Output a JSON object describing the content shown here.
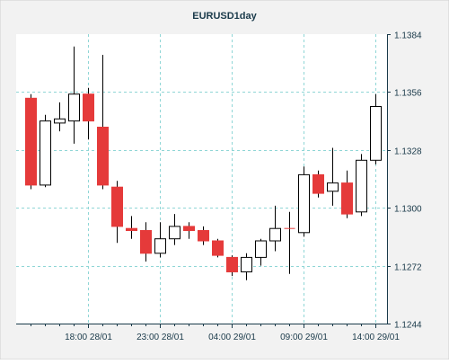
{
  "chart_data": {
    "type": "candlestick",
    "title": "EURUSD1day",
    "y_ticks": [
      "1.1384",
      "1.1356",
      "1.1328",
      "1.1300",
      "1.1272",
      "1.1244"
    ],
    "ylim": [
      1.1244,
      1.1384
    ],
    "x_ticks": [
      "18:00 28/01",
      "23:00 28/01",
      "04:00 29/01",
      "09:00 29/01",
      "14:00 29/01"
    ],
    "x_tick_bars": [
      4.5,
      9.5,
      14.5,
      19.5,
      24.5
    ],
    "grid": true,
    "colors": {
      "up_body": "#ffffff",
      "down_body": "#e53a3a",
      "up_wick": "#000000",
      "down_wick": "#000000",
      "outline": "#000000",
      "grid": "#8fd6d6",
      "axis": "#1a3a4a",
      "title": "#1a3a4a",
      "labels": "#1a3a4a",
      "plot_bg": "#ffffff",
      "panel_bg": "#f2f2f2"
    },
    "candles": [
      {
        "open": 1.1353,
        "close": 1.1311,
        "high": 1.1355,
        "low": 1.1309
      },
      {
        "open": 1.1311,
        "close": 1.1342,
        "high": 1.1345,
        "low": 1.131
      },
      {
        "open": 1.1341,
        "close": 1.1343,
        "high": 1.1351,
        "low": 1.1337
      },
      {
        "open": 1.1342,
        "close": 1.1355,
        "high": 1.1378,
        "low": 1.1331
      },
      {
        "open": 1.1355,
        "close": 1.1342,
        "high": 1.1358,
        "low": 1.1333
      },
      {
        "open": 1.1339,
        "close": 1.1311,
        "high": 1.1374,
        "low": 1.1309
      },
      {
        "open": 1.131,
        "close": 1.1291,
        "high": 1.1313,
        "low": 1.1283
      },
      {
        "open": 1.129,
        "close": 1.1289,
        "high": 1.1296,
        "low": 1.1285
      },
      {
        "open": 1.1289,
        "close": 1.1278,
        "high": 1.1293,
        "low": 1.1274
      },
      {
        "open": 1.1278,
        "close": 1.1285,
        "high": 1.1293,
        "low": 1.1276
      },
      {
        "open": 1.1285,
        "close": 1.1291,
        "high": 1.1297,
        "low": 1.1282
      },
      {
        "open": 1.1291,
        "close": 1.1289,
        "high": 1.1293,
        "low": 1.1285
      },
      {
        "open": 1.1289,
        "close": 1.1284,
        "high": 1.1291,
        "low": 1.1282
      },
      {
        "open": 1.1284,
        "close": 1.1277,
        "high": 1.1285,
        "low": 1.1276
      },
      {
        "open": 1.1276,
        "close": 1.1269,
        "high": 1.1277,
        "low": 1.1267
      },
      {
        "open": 1.1269,
        "close": 1.1276,
        "high": 1.1278,
        "low": 1.1265
      },
      {
        "open": 1.1276,
        "close": 1.1284,
        "high": 1.1285,
        "low": 1.1272
      },
      {
        "open": 1.1284,
        "close": 1.129,
        "high": 1.1301,
        "low": 1.1279
      },
      {
        "open": 1.129,
        "close": 1.129,
        "high": 1.1298,
        "low": 1.1268
      },
      {
        "open": 1.1288,
        "close": 1.1316,
        "high": 1.132,
        "low": 1.1286
      },
      {
        "open": 1.1316,
        "close": 1.1307,
        "high": 1.1318,
        "low": 1.1305
      },
      {
        "open": 1.1308,
        "close": 1.1312,
        "high": 1.1329,
        "low": 1.1301
      },
      {
        "open": 1.1312,
        "close": 1.1297,
        "high": 1.1318,
        "low": 1.1295
      },
      {
        "open": 1.1298,
        "close": 1.1323,
        "high": 1.1326,
        "low": 1.1296
      },
      {
        "open": 1.1323,
        "close": 1.1349,
        "high": 1.1355,
        "low": 1.1321
      }
    ]
  }
}
